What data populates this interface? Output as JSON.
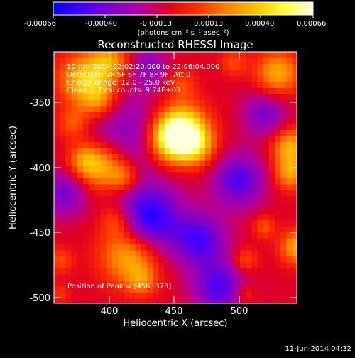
{
  "colorbar": {
    "ticks": [
      "-0.00066",
      "-0.00040",
      "-0.00013",
      "0.00013",
      "0.00040",
      "0.00066"
    ],
    "units_label": "(photons cm⁻² s⁻¹ asec⁻²)",
    "colormap": [
      "#0000ff",
      "#4400ff",
      "#8000c8",
      "#b000a0",
      "#e00020",
      "#ff3000",
      "#ff8000",
      "#ffc000",
      "#ffff40",
      "#ffffe0"
    ]
  },
  "image_title": "Reconstructed RHESSI Image",
  "annotations": [
    "10-Jun-2014 22:02:20.000 to 22:06:04.000",
    "Detectors: 3F 5F 6F 7F 8F 9F, Att 0",
    "Energy Range: 12.0 - 25.0 keV",
    "Clean     Total counts: 9.74E+03"
  ],
  "peak_label": "Position of Peak = [456,-373]",
  "footer_timestamp": "11-Jun-2014 04:32",
  "chart_data": {
    "type": "heatmap",
    "title": "Reconstructed RHESSI Image",
    "xlabel": "Heliocentric X (arcsec)",
    "ylabel": "Heliocentric Y (arcsec)",
    "xlim": [
      357,
      545
    ],
    "ylim": [
      -502,
      -314
    ],
    "xticks": [
      400,
      450,
      500
    ],
    "yticks": [
      -350,
      -400,
      -450,
      -500
    ],
    "zlim": [
      -0.00066,
      0.00066
    ],
    "peak": {
      "x": 456,
      "y": -373
    },
    "blobs": [
      {
        "x": 456,
        "y": -373,
        "r": 14,
        "v": 0.00066
      },
      {
        "x": 447,
        "y": -380,
        "r": 12,
        "v": 0.00045
      },
      {
        "x": 468,
        "y": -385,
        "r": 10,
        "v": 0.0003
      },
      {
        "x": 380,
        "y": -335,
        "r": 14,
        "v": 0.00045
      },
      {
        "x": 400,
        "y": -322,
        "r": 11,
        "v": 0.00035
      },
      {
        "x": 392,
        "y": -350,
        "r": 10,
        "v": 0.0003
      },
      {
        "x": 372,
        "y": -368,
        "r": 9,
        "v": 0.00025
      },
      {
        "x": 395,
        "y": -400,
        "r": 13,
        "v": 0.00045
      },
      {
        "x": 380,
        "y": -395,
        "r": 9,
        "v": 0.0003
      },
      {
        "x": 412,
        "y": -408,
        "r": 8,
        "v": 0.00025
      },
      {
        "x": 416,
        "y": -465,
        "r": 16,
        "v": 0.00048
      },
      {
        "x": 405,
        "y": -440,
        "r": 9,
        "v": 0.00025
      },
      {
        "x": 425,
        "y": -485,
        "r": 8,
        "v": 0.00022
      },
      {
        "x": 362,
        "y": -470,
        "r": 7,
        "v": 0.0002
      },
      {
        "x": 362,
        "y": -495,
        "r": 5,
        "v": 0.00015
      },
      {
        "x": 456,
        "y": -338,
        "r": 8,
        "v": 0.0002
      },
      {
        "x": 530,
        "y": -330,
        "r": 12,
        "v": 0.0004
      },
      {
        "x": 496,
        "y": -322,
        "r": 7,
        "v": 0.0002
      },
      {
        "x": 540,
        "y": -385,
        "r": 10,
        "v": 0.0004
      },
      {
        "x": 540,
        "y": -405,
        "r": 9,
        "v": 0.00035
      },
      {
        "x": 545,
        "y": -460,
        "r": 9,
        "v": 0.0004
      },
      {
        "x": 520,
        "y": -445,
        "r": 6,
        "v": 0.00022
      },
      {
        "x": 505,
        "y": -470,
        "r": 7,
        "v": 0.00022
      },
      {
        "x": 505,
        "y": -495,
        "r": 6,
        "v": 0.00018
      },
      {
        "x": 412,
        "y": -375,
        "r": 24,
        "v": -0.00025
      },
      {
        "x": 430,
        "y": -440,
        "r": 18,
        "v": -0.00055
      },
      {
        "x": 470,
        "y": -455,
        "r": 14,
        "v": -0.0004
      },
      {
        "x": 500,
        "y": -410,
        "r": 14,
        "v": -0.0004
      },
      {
        "x": 485,
        "y": -490,
        "r": 14,
        "v": -0.0004
      },
      {
        "x": 520,
        "y": -360,
        "r": 12,
        "v": -0.0003
      },
      {
        "x": 365,
        "y": -420,
        "r": 12,
        "v": -0.0003
      },
      {
        "x": 430,
        "y": -325,
        "r": 10,
        "v": -0.00025
      }
    ]
  }
}
